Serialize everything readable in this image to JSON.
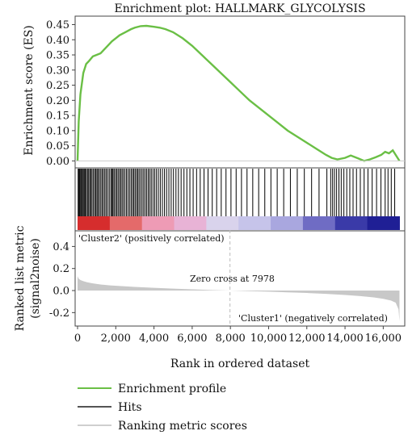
{
  "chart_data": {
    "type": "line",
    "title": "Enrichment plot: HALLMARK_GLYCOLYSIS",
    "xlabel": "Rank in ordered dataset",
    "xlim": [
      0,
      17000
    ],
    "x_ticks": [
      "0",
      "2,000",
      "4,000",
      "6,000",
      "8,000",
      "10,000",
      "12,000",
      "14,000",
      "16,000"
    ],
    "x_tick_values": [
      0,
      2000,
      4000,
      6000,
      8000,
      10000,
      12000,
      14000,
      16000
    ],
    "top_panel": {
      "ylabel": "Enrichment score (ES)",
      "ylim": [
        -0.015,
        0.47
      ],
      "y_ticks": [
        "0.45",
        "0.40",
        "0.35",
        "0.30",
        "0.25",
        "0.20",
        "0.15",
        "0.10",
        "0.05",
        "0.00"
      ],
      "y_tick_values": [
        0.45,
        0.4,
        0.35,
        0.3,
        0.25,
        0.2,
        0.15,
        0.1,
        0.05,
        0.0
      ],
      "series": [
        {
          "name": "Enrichment profile",
          "color": "#6abf45",
          "x": [
            0,
            60,
            150,
            300,
            450,
            600,
            800,
            1000,
            1200,
            1500,
            1800,
            2000,
            2200,
            2500,
            2800,
            3000,
            3300,
            3600,
            4000,
            4300,
            4600,
            5000,
            5500,
            6000,
            6500,
            7000,
            7500,
            8000,
            8500,
            9000,
            9500,
            10000,
            10500,
            11000,
            11500,
            12000,
            12500,
            13000,
            13300,
            13600,
            14000,
            14300,
            14700,
            15000,
            15300,
            15600,
            15900,
            16100,
            16300,
            16500,
            16700,
            16850
          ],
          "y": [
            0.0,
            0.13,
            0.22,
            0.29,
            0.32,
            0.33,
            0.345,
            0.35,
            0.355,
            0.375,
            0.395,
            0.405,
            0.415,
            0.425,
            0.435,
            0.44,
            0.445,
            0.446,
            0.443,
            0.44,
            0.435,
            0.425,
            0.405,
            0.38,
            0.35,
            0.32,
            0.29,
            0.26,
            0.23,
            0.2,
            0.175,
            0.15,
            0.125,
            0.1,
            0.08,
            0.06,
            0.04,
            0.02,
            0.01,
            0.005,
            0.01,
            0.018,
            0.008,
            0.0,
            0.005,
            0.012,
            0.02,
            0.03,
            0.025,
            0.035,
            0.015,
            0.0
          ]
        }
      ]
    },
    "hits_panel": {
      "name": "Hits",
      "color": "#000000",
      "hit_ranks": [
        30,
        70,
        110,
        160,
        200,
        250,
        300,
        350,
        400,
        460,
        520,
        580,
        640,
        700,
        760,
        830,
        900,
        960,
        1020,
        1080,
        1150,
        1220,
        1290,
        1360,
        1430,
        1500,
        1580,
        1660,
        1740,
        1800,
        1850,
        1910,
        1980,
        2050,
        2120,
        2190,
        2260,
        2330,
        2400,
        2480,
        2560,
        2640,
        2720,
        2800,
        2870,
        2940,
        3010,
        3080,
        3150,
        3220,
        3300,
        3380,
        3460,
        3540,
        3620,
        3700,
        3780,
        3860,
        3950,
        4040,
        4130,
        4230,
        4330,
        4440,
        4550,
        4660,
        4780,
        4900,
        5020,
        5150,
        5280,
        5420,
        5570,
        5720,
        5880,
        6050,
        6230,
        6420,
        6620,
        6830,
        7050,
        7280,
        7520,
        7770,
        8030,
        8300,
        8580,
        8870,
        9170,
        9480,
        9800,
        10120,
        10450,
        10790,
        11140,
        11500,
        11870,
        12250,
        12640,
        13050,
        13250,
        13350,
        13450,
        13560,
        13680,
        13800,
        13940,
        14090,
        14250,
        14420,
        14600,
        14800,
        15000,
        15200,
        15420,
        15650,
        15880,
        16100,
        16250,
        16420,
        16600
      ],
      "ranking_colors": [
        "#d62d2d",
        "#e46a6a",
        "#ee9bb5",
        "#e8b3d6",
        "#d9d3ec",
        "#c6c4ea",
        "#a9a7df",
        "#6f6cc4",
        "#3a3aa8",
        "#1f1f95"
      ],
      "cluster_high_label": "'Cluster2' (positively correlated)",
      "cluster_high_color": "#d6332e",
      "cluster_low_label": "'Cluster1' (negatively correlated)",
      "cluster_low_color": "#3a4ea0"
    },
    "bottom_panel": {
      "name": "Ranking metric scores",
      "ylabel": "Ranked list metric\n(signal2noise)",
      "ylim": [
        -0.3,
        0.52
      ],
      "y_ticks": [
        "0.4",
        "0.2",
        "0.0",
        "-0.2"
      ],
      "y_tick_values": [
        0.4,
        0.2,
        0.0,
        -0.2
      ],
      "color": "#c8c8c8",
      "x": [
        0,
        50,
        150,
        300,
        500,
        800,
        1200,
        1700,
        2300,
        3000,
        4000,
        5000,
        6000,
        7000,
        7978,
        9000,
        10000,
        11000,
        12000,
        13000,
        14000,
        14800,
        15500,
        16000,
        16400,
        16650,
        16800,
        16850
      ],
      "y": [
        0.13,
        0.11,
        0.095,
        0.085,
        0.075,
        0.065,
        0.055,
        0.047,
        0.04,
        0.033,
        0.025,
        0.018,
        0.011,
        0.005,
        0.0,
        -0.005,
        -0.01,
        -0.016,
        -0.022,
        -0.03,
        -0.04,
        -0.05,
        -0.062,
        -0.075,
        -0.09,
        -0.11,
        -0.17,
        -0.28
      ],
      "zero_cross_label": "Zero cross at 7978",
      "zero_cross": 7978
    },
    "legend": {
      "position": "bottom-left",
      "items": [
        {
          "label": "Enrichment profile",
          "color": "#6abf45"
        },
        {
          "label": "Hits",
          "color": "#555555"
        },
        {
          "label": "Ranking metric scores",
          "color": "#cfcfcf"
        }
      ]
    }
  }
}
